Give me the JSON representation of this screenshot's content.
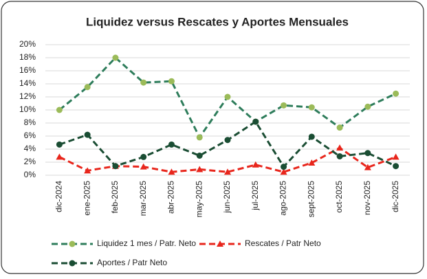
{
  "chart_data": {
    "type": "line",
    "title": "Liquidez versus Rescates y Aportes Mensuales",
    "categories": [
      "dic-2024",
      "ene-2025",
      "feb-2025",
      "mar-2025",
      "abr-2025",
      "may-2025",
      "jun-2025",
      "jul-2025",
      "ago-2025",
      "sept-2025",
      "oct-2025",
      "nov-2025",
      "dic-2025"
    ],
    "series": [
      {
        "name": "Liquidez 1 mes / Patr. Neto",
        "color": "#2e7d5b",
        "marker_color": "#9bbb59",
        "marker": "circle",
        "values": [
          10.0,
          13.5,
          18.0,
          14.2,
          14.4,
          5.8,
          12.0,
          8.2,
          10.7,
          10.4,
          7.3,
          10.5,
          12.5
        ]
      },
      {
        "name": "Rescates / Patr Neto",
        "color": "#e8261c",
        "marker_color": "#e8261c",
        "marker": "triangle",
        "values": [
          2.8,
          0.7,
          1.4,
          1.3,
          0.5,
          0.9,
          0.5,
          1.6,
          0.5,
          1.9,
          4.2,
          1.2,
          2.8
        ]
      },
      {
        "name": "Aportes / Patr Neto",
        "color": "#1a4d33",
        "marker_color": "#1a4d33",
        "marker": "circle",
        "values": [
          4.7,
          6.2,
          1.4,
          2.8,
          4.7,
          3.0,
          5.4,
          8.2,
          1.3,
          5.9,
          2.9,
          3.4,
          1.4
        ]
      }
    ],
    "ylim": [
      0,
      20
    ],
    "yticks": [
      {
        "value": 0,
        "label": "0%"
      },
      {
        "value": 2,
        "label": "2%"
      },
      {
        "value": 4,
        "label": "4%"
      },
      {
        "value": 6,
        "label": "6%"
      },
      {
        "value": 8,
        "label": "8%"
      },
      {
        "value": 10,
        "label": "10%"
      },
      {
        "value": 12,
        "label": "12%"
      },
      {
        "value": 14,
        "label": "14%"
      },
      {
        "value": 16,
        "label": "16%"
      },
      {
        "value": 18,
        "label": "18%"
      },
      {
        "value": 20,
        "label": "20%"
      }
    ],
    "grid": true
  }
}
